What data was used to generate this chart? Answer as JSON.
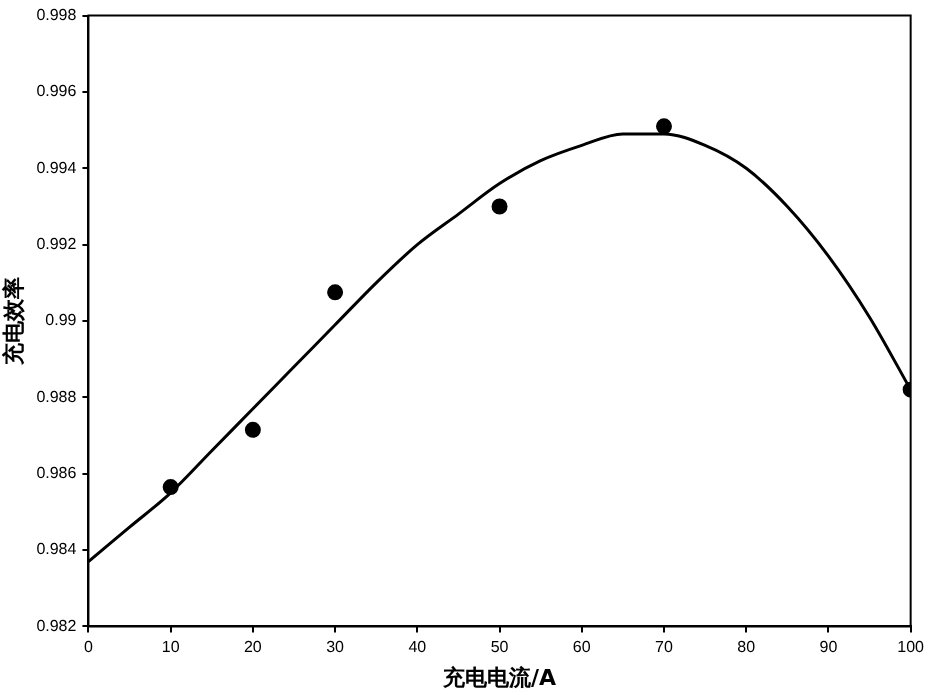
{
  "chart_data": {
    "type": "scatter",
    "xlabel": "充电电流/A",
    "ylabel": "充电效率",
    "xlim": [
      0,
      100
    ],
    "xticks": [
      0,
      10,
      20,
      30,
      40,
      50,
      60,
      70,
      80,
      90,
      100
    ],
    "ylim": [
      0.982,
      0.998
    ],
    "yticks": [
      0.982,
      0.984,
      0.986,
      0.988,
      0.99,
      0.992,
      0.994,
      0.996,
      0.998
    ],
    "grid": false,
    "legend": false,
    "series": [
      {
        "marker": "circle",
        "color": "#000000",
        "x": [
          10,
          20,
          30,
          50,
          70,
          100
        ],
        "values": [
          0.98565,
          0.98715,
          0.99075,
          0.993,
          0.9951,
          0.9882
        ]
      },
      {
        "type": "line",
        "marker": "none",
        "line_style": "solid",
        "color": "#000000",
        "x": [
          0,
          5,
          10,
          15,
          20,
          25,
          30,
          35,
          40,
          45,
          50,
          55,
          60,
          65,
          70,
          75,
          80,
          85,
          90,
          95,
          100
        ],
        "values": [
          0.9837,
          0.9846,
          0.9855,
          0.9866,
          0.9877,
          0.9888,
          0.9899,
          0.991,
          0.992,
          0.9928,
          0.9936,
          0.9942,
          0.9946,
          0.9949,
          0.9949,
          0.9946,
          0.994,
          0.993,
          0.9917,
          0.9901,
          0.9882
        ]
      }
    ]
  }
}
